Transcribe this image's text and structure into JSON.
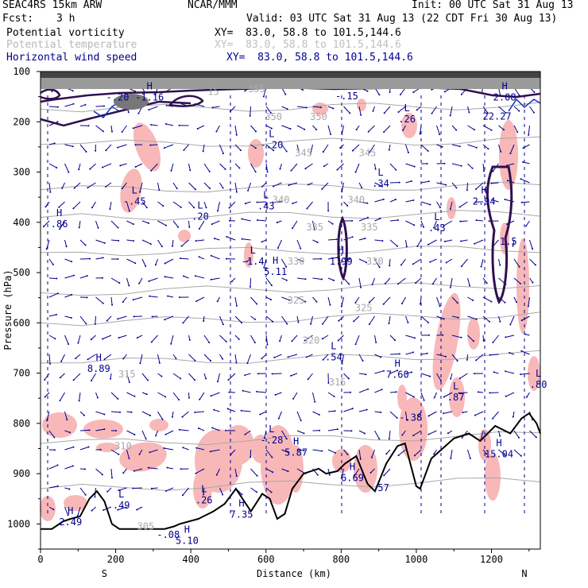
{
  "header": {
    "model": "SEAC4RS 15km ARW",
    "org": "NCAR/MMM",
    "init": "Init: 00 UTC Sat 31 Aug 13",
    "fcst_label": "Fcst:",
    "fcst_value": "3 h",
    "valid": "Valid: 03 UTC Sat 31 Aug 13 (22 CDT Fri 30 Aug 13)"
  },
  "fields": [
    {
      "name": "Potential vorticity",
      "xy": "XY=  83.0, 58.8 to 101.5,144.6",
      "color": "#000000"
    },
    {
      "name": "Potential temperature",
      "xy": "XY=  83.0, 58.8 to 101.5,144.6",
      "color": "#b0b0b0"
    },
    {
      "name": "Horizontal wind speed",
      "xy": "XY=  83.0, 58.8 to 101.5,144.6",
      "color": "#000090"
    }
  ],
  "colors": {
    "pv_fill": "#f8b8b8",
    "pv_contour": "#301050",
    "theta": "#a8a8a8",
    "wind": "#000090",
    "terrain": "#000000"
  },
  "chart_data": {
    "type": "cross-section",
    "xlabel": "Distance (km)",
    "ylabel": "Pressure (hPa)",
    "xlim": [
      0,
      1330
    ],
    "ylim": [
      1050,
      100
    ],
    "x_ticks": [
      "0",
      "200",
      "400",
      "600",
      "800",
      "1000",
      "1200"
    ],
    "y_ticks": [
      "100",
      "200",
      "300",
      "400",
      "500",
      "600",
      "700",
      "800",
      "900",
      "1000"
    ],
    "x_end_labels": {
      "left": "S",
      "right": "N"
    },
    "theta_contours": [
      {
        "label": "355",
        "pressure_at_left": 120
      },
      {
        "label": "350",
        "pressure_at_left": 175
      },
      {
        "label": "345",
        "pressure_at_left": 245
      },
      {
        "label": "340",
        "pressure_at_left": 335
      },
      {
        "label": "335",
        "pressure_at_left": 390
      },
      {
        "label": "330",
        "pressure_at_left": 460
      },
      {
        "label": "325",
        "pressure_at_left": 540
      },
      {
        "label": "320",
        "pressure_at_left": 600
      },
      {
        "label": "315",
        "pressure_at_left": 680
      },
      {
        "label": "310",
        "pressure_at_left": 840
      },
      {
        "label": "305",
        "pressure_at_left": 930
      }
    ],
    "theta_labels": [
      {
        "text": "355",
        "x": 575,
        "p": 135
      },
      {
        "text": "350",
        "x": 620,
        "p": 190
      },
      {
        "text": "350",
        "x": 740,
        "p": 190
      },
      {
        "text": "345",
        "x": 700,
        "p": 262
      },
      {
        "text": "345",
        "x": 870,
        "p": 262
      },
      {
        "text": "340",
        "x": 640,
        "p": 355
      },
      {
        "text": "340",
        "x": 840,
        "p": 355
      },
      {
        "text": "335",
        "x": 730,
        "p": 410
      },
      {
        "text": "335",
        "x": 875,
        "p": 410
      },
      {
        "text": "330",
        "x": 680,
        "p": 478
      },
      {
        "text": "330",
        "x": 890,
        "p": 478
      },
      {
        "text": "325",
        "x": 680,
        "p": 555
      },
      {
        "text": "325",
        "x": 860,
        "p": 570
      },
      {
        "text": "320",
        "x": 720,
        "p": 635
      },
      {
        "text": "315",
        "x": 230,
        "p": 702
      },
      {
        "text": "315",
        "x": 790,
        "p": 718
      },
      {
        "text": "310",
        "x": 220,
        "p": 845
      },
      {
        "text": "305",
        "x": 280,
        "p": 1005
      },
      {
        "text": "15",
        "x": 460,
        "p": 140
      }
    ],
    "extrema": [
      {
        "type": "H",
        "value": "-1.16",
        "x": 290,
        "p": 148
      },
      {
        "type": "",
        "value": "-.20",
        "x": 205,
        "p": 148
      },
      {
        "type": "",
        "value": "-.15",
        "x": 815,
        "p": 146
      },
      {
        "type": "L",
        "value": ".26",
        "x": 975,
        "p": 192
      },
      {
        "type": "H",
        "value": "2.08",
        "x": 1235,
        "p": 148
      },
      {
        "type": "",
        "value": "22.27",
        "x": 1215,
        "p": 186
      },
      {
        "type": "L",
        "value": "-.20",
        "x": 615,
        "p": 243
      },
      {
        "type": "L",
        "value": ".34",
        "x": 905,
        "p": 320
      },
      {
        "type": "L",
        "value": "-.45",
        "x": 250,
        "p": 355
      },
      {
        "type": "L",
        "value": ".20",
        "x": 425,
        "p": 385
      },
      {
        "type": "L",
        "value": ".43",
        "x": 600,
        "p": 365
      },
      {
        "type": "H",
        "value": "2.94",
        "x": 1180,
        "p": 355
      },
      {
        "type": "H",
        "value": ".86",
        "x": 50,
        "p": 400
      },
      {
        "type": "L",
        "value": ".43",
        "x": 1055,
        "p": 408
      },
      {
        "type": "",
        "value": "1.5",
        "x": 1245,
        "p": 435
      },
      {
        "type": "L",
        "value": "-1.4",
        "x": 565,
        "p": 475
      },
      {
        "type": "H",
        "value": "5.11",
        "x": 625,
        "p": 495
      },
      {
        "type": "H",
        "value": "1.99",
        "x": 800,
        "p": 475
      },
      {
        "type": "L",
        "value": ".54",
        "x": 780,
        "p": 665
      },
      {
        "type": "H",
        "value": "8.89",
        "x": 155,
        "p": 688
      },
      {
        "type": "H",
        "value": "7.60",
        "x": 950,
        "p": 700
      },
      {
        "type": "L",
        "value": ".87",
        "x": 1105,
        "p": 745
      },
      {
        "type": "L",
        "value": ".80",
        "x": 1325,
        "p": 720
      },
      {
        "type": "",
        "value": "-.38",
        "x": 985,
        "p": 785
      },
      {
        "type": "L",
        "value": "-.28",
        "x": 615,
        "p": 830
      },
      {
        "type": "H",
        "value": "5.87",
        "x": 680,
        "p": 855
      },
      {
        "type": "H",
        "value": "6.69",
        "x": 830,
        "p": 905
      },
      {
        "type": "H",
        "value": "15.04",
        "x": 1220,
        "p": 858
      },
      {
        "type": "",
        "value": ".57",
        "x": 905,
        "p": 925
      },
      {
        "type": "L",
        "value": ".49",
        "x": 215,
        "p": 960
      },
      {
        "type": "L",
        "value": ".26",
        "x": 435,
        "p": 950
      },
      {
        "type": "H",
        "value": "7.35",
        "x": 535,
        "p": 978
      },
      {
        "type": "H",
        "value": "2.49",
        "x": 80,
        "p": 993
      },
      {
        "type": "",
        "value": "-.08",
        "x": 340,
        "p": 1018
      },
      {
        "type": "H",
        "value": "5.10",
        "x": 390,
        "p": 1030
      }
    ],
    "terrain_profile": {
      "x": [
        0,
        30,
        60,
        80,
        105,
        130,
        150,
        170,
        190,
        210,
        300,
        330,
        355,
        370,
        420,
        460,
        490,
        520,
        560,
        590,
        610,
        630,
        650,
        670,
        700,
        740,
        760,
        790,
        810,
        840,
        870,
        890,
        920,
        950,
        970,
        1000,
        1010,
        1040,
        1070,
        1100,
        1140,
        1170,
        1210,
        1250,
        1280,
        1300,
        1320,
        1330
      ],
      "p": [
        1010,
        1010,
        995,
        990,
        985,
        950,
        935,
        955,
        1000,
        1010,
        1010,
        1010,
        1005,
        1000,
        990,
        975,
        960,
        930,
        975,
        940,
        950,
        990,
        980,
        930,
        900,
        890,
        900,
        895,
        880,
        865,
        920,
        935,
        880,
        845,
        840,
        925,
        930,
        870,
        850,
        830,
        820,
        835,
        805,
        820,
        790,
        780,
        800,
        820
      ]
    }
  }
}
